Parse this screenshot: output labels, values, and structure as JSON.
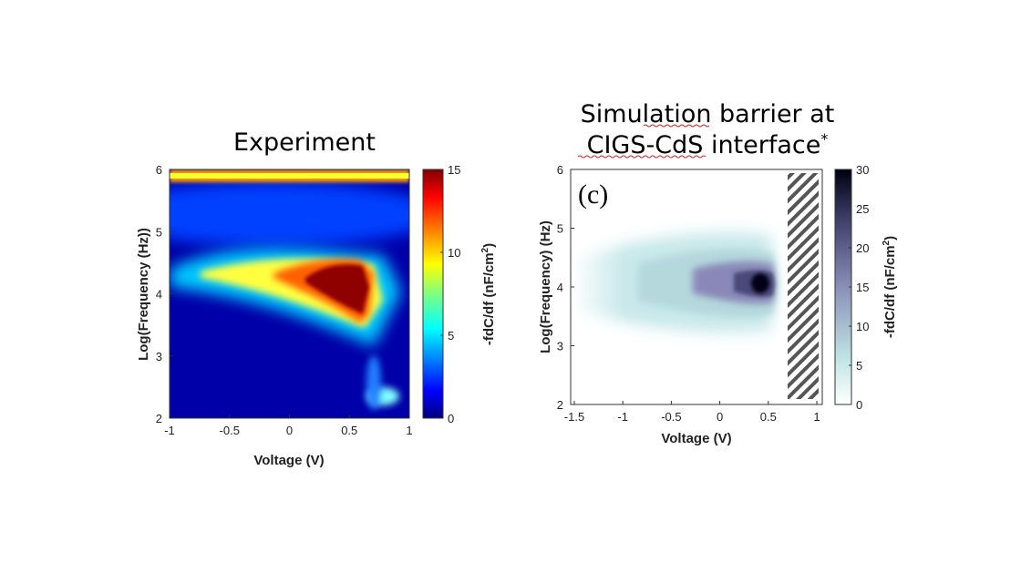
{
  "chart_data": [
    {
      "type": "heatmap",
      "title": "Experiment",
      "xlabel": "Voltage (V)",
      "ylabel": "Log(Frequency (Hz))",
      "colorbar_label": "-fdC/df (nF/cm",
      "colorbar_label_sup": "2",
      "colorbar_label_end": ")",
      "xlim": [
        -1,
        1
      ],
      "ylim": [
        2,
        6
      ],
      "clim": [
        0,
        15
      ],
      "colormap": "jet",
      "x_ticks": [
        "-1",
        "-0.5",
        "0",
        "0.5",
        "1"
      ],
      "y_ticks": [
        "2",
        "3",
        "4",
        "5",
        "6"
      ],
      "colorbar_ticks": [
        "0",
        "5",
        "10",
        "15"
      ],
      "features": [
        {
          "peak_voltage": 0.5,
          "peak_log_freq": 4.2,
          "value": 15
        },
        {
          "band_log_freq": 5.9,
          "value": 10
        }
      ]
    },
    {
      "type": "heatmap",
      "title_line1": "Simulation barrier at",
      "title_line2": "CIGS-CdS interface",
      "title_sup": "*",
      "panel_label": "(c)",
      "xlabel": "Voltage (V)",
      "ylabel": "Log(Frequency) (Hz)",
      "colorbar_label": "-fdC/df (nF/cm",
      "colorbar_label_sup": "2",
      "colorbar_label_end": ")",
      "xlim": [
        -1.5,
        1
      ],
      "ylim": [
        2,
        6
      ],
      "clim": [
        0,
        30
      ],
      "colormap": "bone_r",
      "x_ticks": [
        "-1.5",
        "-1",
        "-0.5",
        "0",
        "0.5",
        "1"
      ],
      "y_ticks": [
        "2",
        "3",
        "4",
        "5",
        "6"
      ],
      "colorbar_ticks": [
        "0",
        "5",
        "10",
        "15",
        "20",
        "25",
        "30"
      ],
      "features": [
        {
          "peak_voltage": 0.45,
          "peak_log_freq": 4.05,
          "value": 30
        },
        {
          "hatched_region_voltage": [
            0.7,
            1.0
          ]
        }
      ]
    }
  ]
}
